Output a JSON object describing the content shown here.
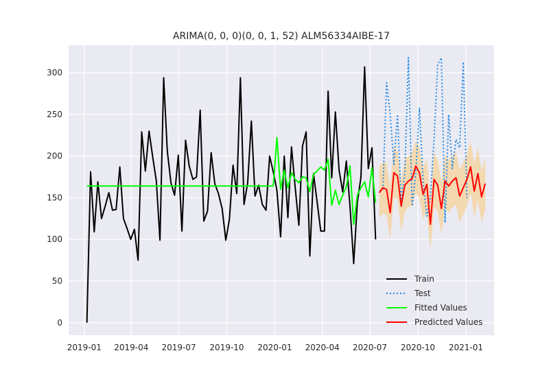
{
  "chart_data": {
    "type": "line",
    "title": "ARIMA(0, 0, 0)(0, 0, 1, 52) ALM56334AIBE-17",
    "xlabel": "",
    "ylabel": "",
    "xlim": [
      "2018-12-02",
      "2021-02-24"
    ],
    "ylim": [
      -15,
      333
    ],
    "grid": true,
    "legend_position": "lower-right",
    "x_tick_labels": [
      "2019-01",
      "2019-04",
      "2019-07",
      "2019-10",
      "2020-01",
      "2020-04",
      "2020-07",
      "2020-10",
      "2021-01"
    ],
    "x_tick_dates": [
      "2019-01-01",
      "2019-04-01",
      "2019-07-01",
      "2019-10-01",
      "2020-01-01",
      "2020-04-01",
      "2020-07-01",
      "2020-10-01",
      "2021-01-01"
    ],
    "y_ticks": [
      0,
      50,
      100,
      150,
      200,
      250,
      300
    ],
    "colors": {
      "background": "#eaeaf2",
      "grid": "#ffffff",
      "train": "#000000",
      "test": "#1e88e5",
      "fitted": "#00ff00",
      "predicted": "#ff0000",
      "ci": "#f5d5a4"
    },
    "series": [
      {
        "name": "Train",
        "style": "solid",
        "start": "2019-01-06",
        "step_days": 7,
        "values": [
          0,
          181,
          109,
          169,
          125,
          140,
          156,
          135,
          136,
          187,
          125,
          113,
          100,
          112,
          75,
          229,
          182,
          230,
          199,
          170,
          99,
          294,
          206,
          168,
          153,
          201,
          110,
          219,
          188,
          172,
          175,
          255,
          122,
          134,
          204,
          167,
          155,
          137,
          99,
          124,
          189,
          155,
          294,
          142,
          168,
          242,
          152,
          165,
          142,
          135,
          200,
          181,
          159,
          103,
          200,
          126,
          211,
          162,
          117,
          212,
          229,
          80,
          179,
          145,
          110,
          110,
          278,
          174,
          253,
          183,
          157,
          194,
          140,
          71,
          144,
          175,
          307,
          185,
          210,
          100
        ]
      },
      {
        "name": "Test",
        "style": "dotted",
        "start": "2020-07-26",
        "step_days": 7,
        "values": [
          160,
          288,
          250,
          190,
          250,
          145,
          180,
          318,
          140,
          180,
          258,
          170,
          128,
          150,
          220,
          310,
          318,
          120,
          250,
          185,
          220,
          210,
          313,
          150
        ]
      },
      {
        "name": "Fitted Values",
        "style": "solid",
        "start": "2019-01-06",
        "step_days": 7,
        "values": [
          164,
          164,
          164,
          164,
          164,
          164,
          164,
          164,
          164,
          164,
          164,
          164,
          164,
          164,
          164,
          164,
          164,
          164,
          164,
          164,
          164,
          164,
          164,
          164,
          164,
          164,
          164,
          164,
          164,
          164,
          164,
          164,
          164,
          164,
          164,
          164,
          164,
          164,
          164,
          164,
          164,
          164,
          164,
          164,
          164,
          164,
          164,
          164,
          164,
          164,
          164,
          164,
          222,
          160,
          183,
          162,
          180,
          172,
          168,
          175,
          174,
          157,
          178,
          182,
          187,
          183,
          196,
          141,
          159,
          142,
          153,
          163,
          188,
          118,
          153,
          162,
          169,
          151,
          186,
          144
        ]
      },
      {
        "name": "Predicted Values",
        "style": "solid",
        "start": "2020-07-19",
        "step_days": 7,
        "values": [
          156,
          162,
          160,
          132,
          180,
          176,
          140,
          165,
          170,
          173,
          188,
          180,
          154,
          166,
          118,
          172,
          165,
          137,
          170,
          164,
          170,
          174,
          152,
          162,
          172,
          187,
          158,
          179,
          151,
          167
        ]
      }
    ],
    "confidence_interval": {
      "start": "2020-07-19",
      "step_days": 7,
      "lower": [
        126,
        131,
        129,
        100,
        150,
        148,
        110,
        133,
        139,
        140,
        156,
        149,
        124,
        134,
        86,
        140,
        133,
        106,
        138,
        132,
        138,
        142,
        120,
        130,
        140,
        156,
        126,
        147,
        120,
        135
      ],
      "upper": [
        187,
        193,
        192,
        163,
        211,
        206,
        170,
        196,
        200,
        205,
        218,
        210,
        185,
        197,
        150,
        204,
        196,
        168,
        201,
        195,
        200,
        205,
        183,
        192,
        203,
        218,
        190,
        210,
        182,
        198
      ]
    }
  }
}
